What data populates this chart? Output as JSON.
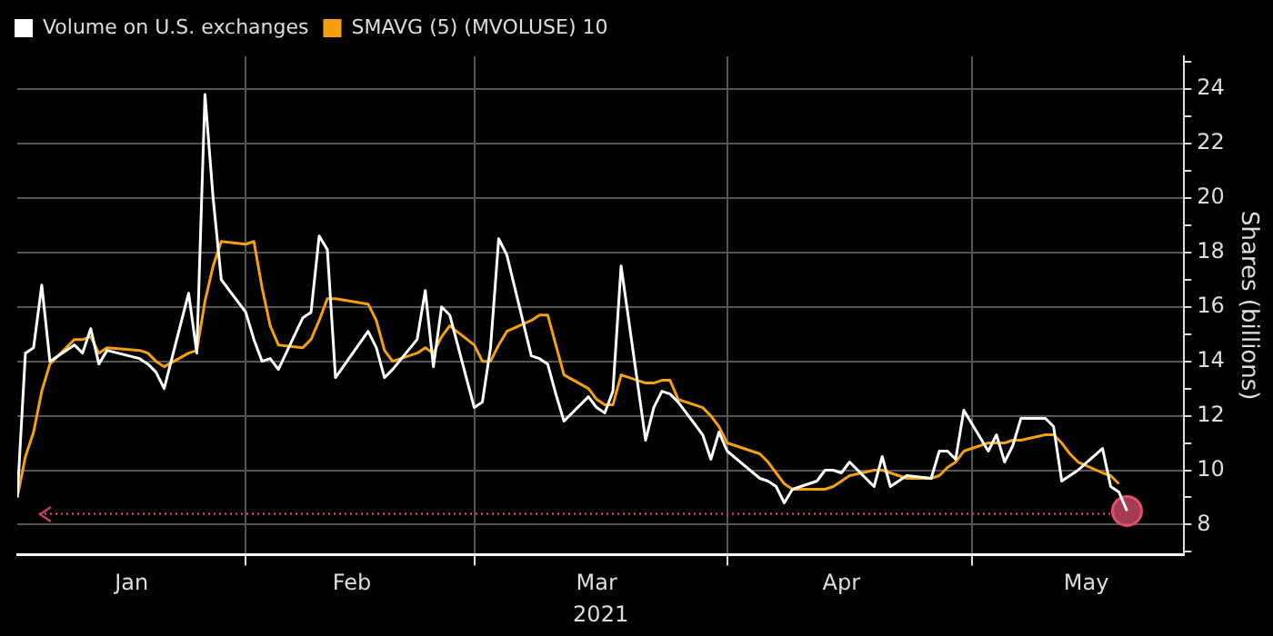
{
  "chart_data": {
    "type": "line",
    "xlabel": "2021",
    "ylabel": "Shares (billions)",
    "legend": "top left",
    "grid": true,
    "marker": "none",
    "line_style": "solid",
    "xlim": [
      "2021-01-04",
      "2021-05-27"
    ],
    "xticks": [
      {
        "value": "2021-01-18",
        "label": "Jan"
      },
      {
        "value": "2021-02-01",
        "label": null
      },
      {
        "value": "2021-02-14",
        "label": "Feb"
      },
      {
        "value": "2021-03-01",
        "label": null
      },
      {
        "value": "2021-03-16",
        "label": "Mar"
      },
      {
        "value": "2021-04-01",
        "label": null
      },
      {
        "value": "2021-04-15",
        "label": "Apr"
      },
      {
        "value": "2021-05-01",
        "label": null
      },
      {
        "value": "2021-05-15",
        "label": "May"
      }
    ],
    "ylim": [
      6.9,
      25.2
    ],
    "yticks": [
      {
        "value": 7,
        "label": null
      },
      8,
      {
        "value": 9,
        "label": null
      },
      10,
      {
        "value": 11,
        "label": null
      },
      12,
      {
        "value": 13,
        "label": null
      },
      14,
      {
        "value": 15,
        "label": null
      },
      16,
      {
        "value": 17,
        "label": null
      },
      18,
      {
        "value": 19,
        "label": null
      },
      20,
      {
        "value": 21,
        "label": null
      },
      22,
      {
        "value": 23,
        "label": null
      },
      24,
      {
        "value": 25,
        "label": null
      }
    ],
    "ref_lines": [
      {
        "axis": "y",
        "value": 8.4,
        "color": "#c8406e",
        "line_style": "dotted"
      }
    ],
    "series": [
      {
        "name": "Volume on U.S. exchanges",
        "color": "#ffffff",
        "x": [
          "2021-01-04",
          "2021-01-05",
          "2021-01-06",
          "2021-01-07",
          "2021-01-08",
          "2021-01-11",
          "2021-01-12",
          "2021-01-13",
          "2021-01-14",
          "2021-01-15",
          "2021-01-19",
          "2021-01-20",
          "2021-01-21",
          "2021-01-22",
          "2021-01-25",
          "2021-01-26",
          "2021-01-27",
          "2021-01-28",
          "2021-01-29",
          "2021-02-01",
          "2021-02-02",
          "2021-02-03",
          "2021-02-04",
          "2021-02-05",
          "2021-02-08",
          "2021-02-09",
          "2021-02-10",
          "2021-02-11",
          "2021-02-12",
          "2021-02-16",
          "2021-02-17",
          "2021-02-18",
          "2021-02-19",
          "2021-02-22",
          "2021-02-23",
          "2021-02-24",
          "2021-02-25",
          "2021-02-26",
          "2021-03-01",
          "2021-03-02",
          "2021-03-03",
          "2021-03-04",
          "2021-03-05",
          "2021-03-08",
          "2021-03-09",
          "2021-03-10",
          "2021-03-11",
          "2021-03-12",
          "2021-03-15",
          "2021-03-16",
          "2021-03-17",
          "2021-03-18",
          "2021-03-19",
          "2021-03-22",
          "2021-03-23",
          "2021-03-24",
          "2021-03-25",
          "2021-03-26",
          "2021-03-29",
          "2021-03-30",
          "2021-03-31",
          "2021-04-01",
          "2021-04-05",
          "2021-04-06",
          "2021-04-07",
          "2021-04-08",
          "2021-04-09",
          "2021-04-12",
          "2021-04-13",
          "2021-04-14",
          "2021-04-15",
          "2021-04-16",
          "2021-04-19",
          "2021-04-20",
          "2021-04-21",
          "2021-04-22",
          "2021-04-23",
          "2021-04-26",
          "2021-04-27",
          "2021-04-28",
          "2021-04-29",
          "2021-04-30",
          "2021-05-03",
          "2021-05-04",
          "2021-05-05",
          "2021-05-06",
          "2021-05-07",
          "2021-05-10",
          "2021-05-11",
          "2021-05-12",
          "2021-05-13",
          "2021-05-14",
          "2021-05-17",
          "2021-05-18",
          "2021-05-19",
          "2021-05-20"
        ],
        "values": [
          9.0,
          14.3,
          14.5,
          16.8,
          14.0,
          14.6,
          14.3,
          15.2,
          13.9,
          14.4,
          14.1,
          13.9,
          13.6,
          13.0,
          16.5,
          14.3,
          23.8,
          20.0,
          17.0,
          15.8,
          14.8,
          14.0,
          14.1,
          13.7,
          15.6,
          15.8,
          18.6,
          18.1,
          13.4,
          15.1,
          14.5,
          13.4,
          13.7,
          14.8,
          16.6,
          13.8,
          16.0,
          15.7,
          12.3,
          12.5,
          14.5,
          18.5,
          17.9,
          14.2,
          14.1,
          13.9,
          12.8,
          11.8,
          12.7,
          12.3,
          12.1,
          12.9,
          17.5,
          11.1,
          12.3,
          12.9,
          12.8,
          12.5,
          11.3,
          10.4,
          11.4,
          10.7,
          9.7,
          9.6,
          9.4,
          8.8,
          9.3,
          9.6,
          10.0,
          10.0,
          9.9,
          10.3,
          9.4,
          10.5,
          9.4,
          9.6,
          9.8,
          9.7,
          10.7,
          10.7,
          10.4,
          12.2,
          10.7,
          11.3,
          10.3,
          10.9,
          11.9,
          11.9,
          11.6,
          9.6,
          9.8,
          10.0,
          10.8,
          9.4,
          9.2,
          8.5
        ]
      },
      {
        "name": "SMAVG (5) (MVOLUSE) 10",
        "color": "#f5a00f",
        "x": [
          "2021-01-04",
          "2021-01-05",
          "2021-01-06",
          "2021-01-07",
          "2021-01-08",
          "2021-01-11",
          "2021-01-12",
          "2021-01-13",
          "2021-01-14",
          "2021-01-15",
          "2021-01-19",
          "2021-01-20",
          "2021-01-21",
          "2021-01-22",
          "2021-01-25",
          "2021-01-26",
          "2021-01-27",
          "2021-01-28",
          "2021-01-29",
          "2021-02-01",
          "2021-02-02",
          "2021-02-03",
          "2021-02-04",
          "2021-02-05",
          "2021-02-08",
          "2021-02-09",
          "2021-02-10",
          "2021-02-11",
          "2021-02-12",
          "2021-02-16",
          "2021-02-17",
          "2021-02-18",
          "2021-02-19",
          "2021-02-22",
          "2021-02-23",
          "2021-02-24",
          "2021-02-25",
          "2021-02-26",
          "2021-03-01",
          "2021-03-02",
          "2021-03-03",
          "2021-03-04",
          "2021-03-05",
          "2021-03-08",
          "2021-03-09",
          "2021-03-10",
          "2021-03-11",
          "2021-03-12",
          "2021-03-15",
          "2021-03-16",
          "2021-03-17",
          "2021-03-18",
          "2021-03-19",
          "2021-03-22",
          "2021-03-23",
          "2021-03-24",
          "2021-03-25",
          "2021-03-26",
          "2021-03-29",
          "2021-03-30",
          "2021-03-31",
          "2021-04-01",
          "2021-04-05",
          "2021-04-06",
          "2021-04-07",
          "2021-04-08",
          "2021-04-09",
          "2021-04-12",
          "2021-04-13",
          "2021-04-14",
          "2021-04-15",
          "2021-04-16",
          "2021-04-19",
          "2021-04-20",
          "2021-04-21",
          "2021-04-22",
          "2021-04-23",
          "2021-04-26",
          "2021-04-27",
          "2021-04-28",
          "2021-04-29",
          "2021-04-30",
          "2021-05-03",
          "2021-05-04",
          "2021-05-05",
          "2021-05-06",
          "2021-05-07",
          "2021-05-10",
          "2021-05-11",
          "2021-05-12",
          "2021-05-13",
          "2021-05-14",
          "2021-05-17",
          "2021-05-18",
          "2021-05-19"
        ],
        "values": [
          9.0,
          10.5,
          11.4,
          12.9,
          13.9,
          14.8,
          14.8,
          14.9,
          14.3,
          14.5,
          14.4,
          14.3,
          14.0,
          13.8,
          14.3,
          14.4,
          16.2,
          17.5,
          18.4,
          18.3,
          18.4,
          16.7,
          15.3,
          14.6,
          14.5,
          14.8,
          15.5,
          16.3,
          16.3,
          16.1,
          15.5,
          14.4,
          14.0,
          14.3,
          14.5,
          14.3,
          14.9,
          15.3,
          14.6,
          14.0,
          14.0,
          14.6,
          15.1,
          15.5,
          15.7,
          15.7,
          14.6,
          13.5,
          13.0,
          12.6,
          12.4,
          12.4,
          13.5,
          13.2,
          13.2,
          13.3,
          13.3,
          12.6,
          12.3,
          12.0,
          11.6,
          11.0,
          10.6,
          10.3,
          9.9,
          9.5,
          9.3,
          9.3,
          9.3,
          9.4,
          9.6,
          9.8,
          10.0,
          10.0,
          9.9,
          9.8,
          9.7,
          9.7,
          9.8,
          10.1,
          10.3,
          10.7,
          11.0,
          11.0,
          11.0,
          11.1,
          11.1,
          11.3,
          11.3,
          11.0,
          10.6,
          10.3,
          9.9,
          9.8,
          9.5
        ]
      },
      {
        "type": "scatter",
        "color": "#e0506e",
        "marker": "circle",
        "x": [
          "2021-05-20"
        ],
        "values": [
          8.5
        ]
      }
    ]
  }
}
